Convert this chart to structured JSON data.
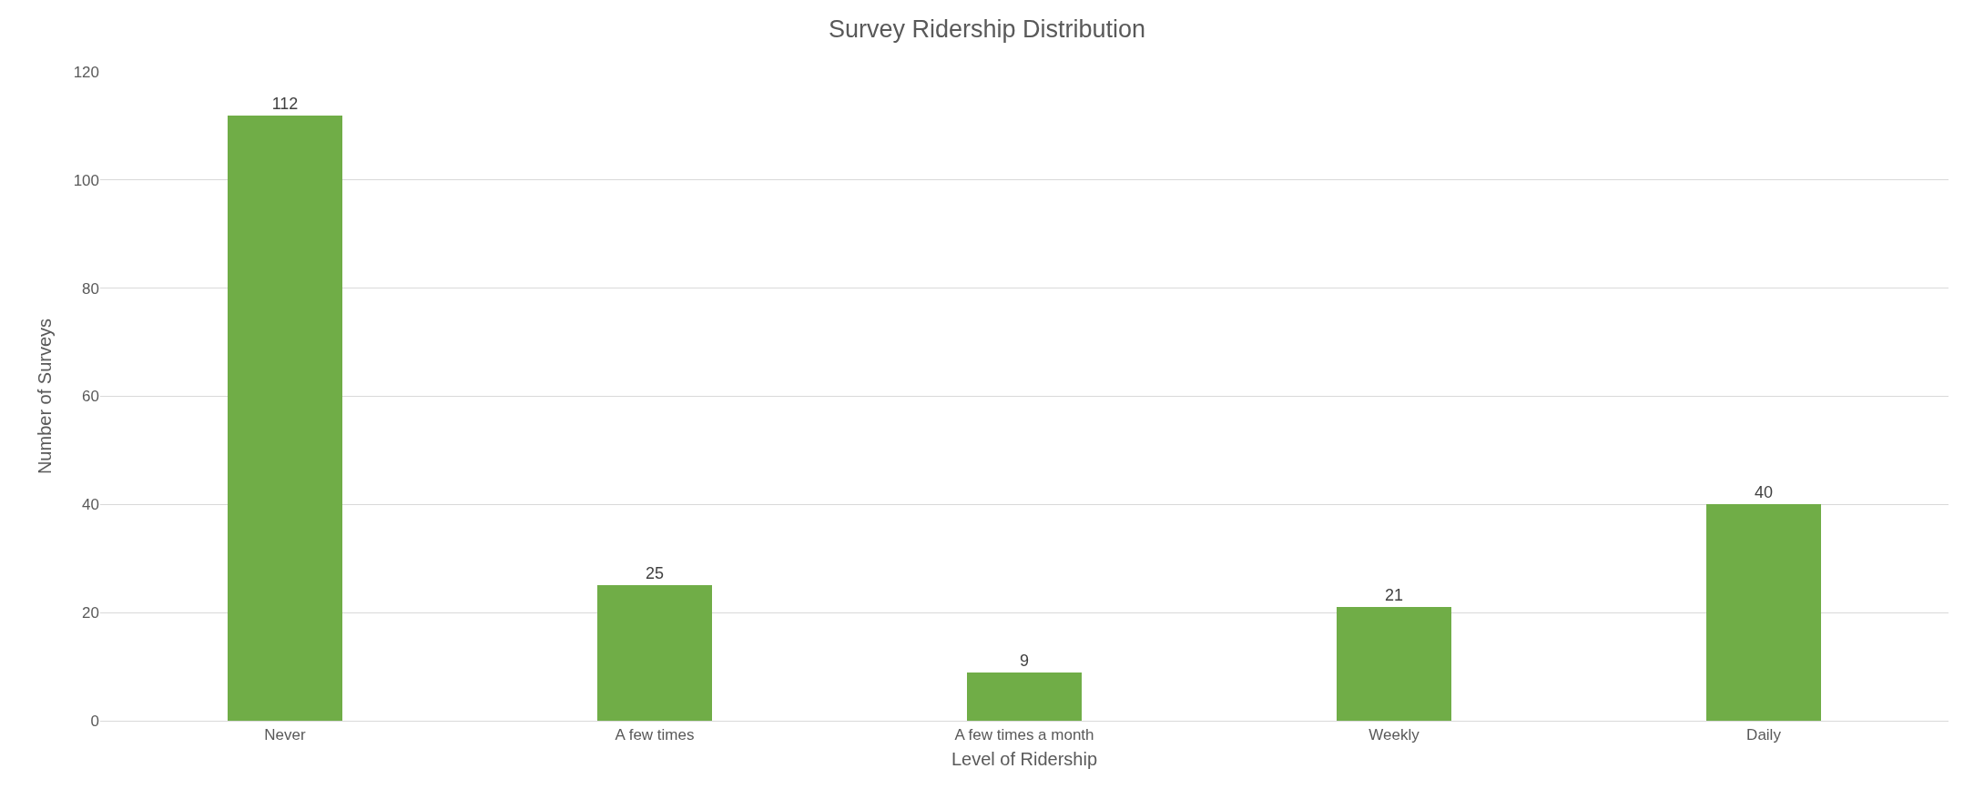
{
  "chart_data": {
    "type": "bar",
    "title": "Survey Ridership Distribution",
    "xlabel": "Level of Ridership",
    "ylabel": "Number of Surveys",
    "categories": [
      "Never",
      "A few times",
      "A few times a month",
      "Weekly",
      "Daily"
    ],
    "values": [
      112,
      25,
      9,
      21,
      40
    ],
    "color": "#70ad47",
    "data_labels": true,
    "ylim": [
      0,
      120
    ],
    "yticks": [
      0,
      20,
      40,
      60,
      80,
      100,
      120
    ],
    "grid": "y",
    "legend": false
  }
}
